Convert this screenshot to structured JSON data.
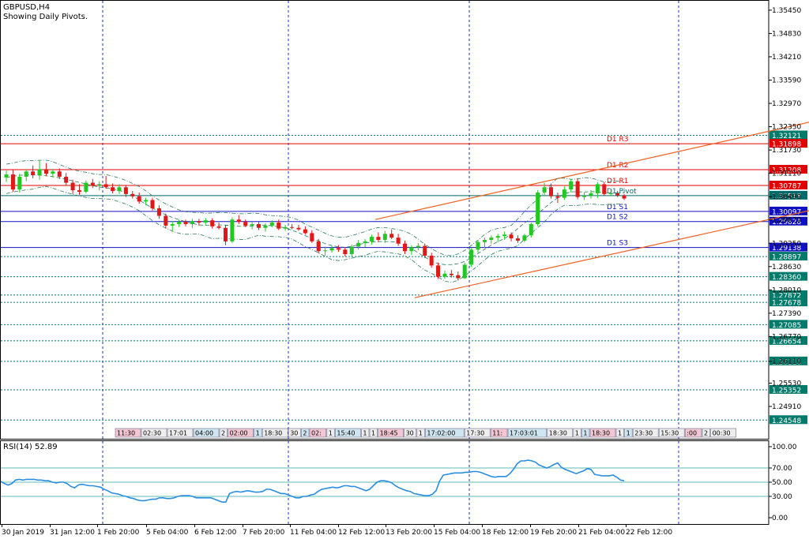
{
  "chart_data": {
    "type": "candlestick",
    "symbol": "GBPUSD,H4",
    "subtitle": "Showing Daily Pivots.",
    "price_axis": {
      "min": 1.2405,
      "max": 1.3572,
      "ticks": [
        "1.35450",
        "1.34830",
        "1.34210",
        "1.33590",
        "1.32970",
        "1.32350",
        "1.31730",
        "1.31110",
        "1.30490",
        "1.29870",
        "1.29250",
        "1.28630",
        "1.28010",
        "1.27390",
        "1.26770",
        "1.26110",
        "1.25530",
        "1.24910"
      ]
    },
    "x_labels": [
      "30 Jan 2019",
      "31 Jan 12:00",
      "1 Feb 20:00",
      "5 Feb 04:00",
      "6 Feb 12:00",
      "7 Feb 20:00",
      "11 Feb 04:00",
      "12 Feb 12:00",
      "13 Feb 20:00",
      "15 Feb 04:00",
      "18 Feb 12:00",
      "19 Feb 20:00",
      "21 Feb 04:00",
      "22 Feb 12:00"
    ],
    "pivot_lines": [
      {
        "label": "D1 R3",
        "value": 1.31898,
        "badge": "1.31898",
        "color": "#e00000"
      },
      {
        "label": "D1 R2",
        "value": 1.31208,
        "badge": "1.31208",
        "color": "#e00000"
      },
      {
        "label": "D1 R1",
        "value": 1.30787,
        "badge": "1.30787",
        "color": "#e00000"
      },
      {
        "label": "D1 Pivot",
        "value": 1.30518,
        "badge": "1.30518",
        "color": "#006a6a"
      },
      {
        "label": "D1 S1",
        "value": 1.30097,
        "badge": "1.30097",
        "color": "#1010c0"
      },
      {
        "label": "D1 S2",
        "value": 1.29828,
        "badge": "1.29828",
        "color": "#1010c0"
      },
      {
        "label": "D1 S3",
        "value": 1.29138,
        "badge": "1.29138",
        "color": "#1010c0"
      }
    ],
    "level_lines": [
      {
        "value": 1.32121,
        "badge": "1.32121",
        "color": "#007a6a"
      },
      {
        "value": 1.28897,
        "badge": "1.28897",
        "color": "#007a6a"
      },
      {
        "value": 1.2836,
        "badge": "1.28360",
        "color": "#007a6a"
      },
      {
        "value": 1.27872,
        "badge": "1.27872",
        "color": "#007a6a"
      },
      {
        "value": 1.27678,
        "badge": "1.27678",
        "color": "#007a6a"
      },
      {
        "value": 1.27085,
        "badge": "1.27085",
        "color": "#007a6a"
      },
      {
        "value": 1.26654,
        "badge": "1.26654",
        "color": "#007a6a"
      },
      {
        "value": 1.2611,
        "badge": "1.26110",
        "color": "#007a6a"
      },
      {
        "value": 1.25352,
        "badge": "1.25352",
        "color": "#007a6a"
      },
      {
        "value": 1.24548,
        "badge": "1.24548",
        "color": "#007a6a"
      }
    ],
    "channel": {
      "color": "#f06020",
      "upper": [
        [
          475,
          1.29881
        ],
        [
          1024,
          1.32469
        ]
      ],
      "lower": [
        [
          525,
          1.27803
        ],
        [
          1024,
          1.30116
        ]
      ]
    },
    "candles": [
      [
        1.31,
        1.3118,
        1.3088,
        1.3108
      ],
      [
        1.3108,
        1.312,
        1.3062,
        1.3068
      ],
      [
        1.3068,
        1.311,
        1.306,
        1.3102
      ],
      [
        1.3102,
        1.3122,
        1.309,
        1.3116
      ],
      [
        1.3116,
        1.3132,
        1.3098,
        1.3106
      ],
      [
        1.3106,
        1.3146,
        1.3094,
        1.3122
      ],
      [
        1.3122,
        1.3138,
        1.3104,
        1.311
      ],
      [
        1.311,
        1.3122,
        1.31,
        1.3116
      ],
      [
        1.3116,
        1.3124,
        1.3096,
        1.3102
      ],
      [
        1.3102,
        1.3112,
        1.3078,
        1.3086
      ],
      [
        1.3086,
        1.3094,
        1.3056,
        1.3066
      ],
      [
        1.3066,
        1.3082,
        1.3054,
        1.3062
      ],
      [
        1.3062,
        1.3092,
        1.3058,
        1.3086
      ],
      [
        1.3086,
        1.3096,
        1.3072,
        1.3078
      ],
      [
        1.3078,
        1.309,
        1.3066,
        1.3082
      ],
      [
        1.3082,
        1.3104,
        1.307,
        1.3074
      ],
      [
        1.3074,
        1.3084,
        1.3058,
        1.3064
      ],
      [
        1.3064,
        1.3082,
        1.3056,
        1.3074
      ],
      [
        1.3074,
        1.308,
        1.3048,
        1.3056
      ],
      [
        1.3056,
        1.3064,
        1.3044,
        1.305
      ],
      [
        1.305,
        1.306,
        1.303,
        1.3036
      ],
      [
        1.3036,
        1.3046,
        1.3026,
        1.304
      ],
      [
        1.304,
        1.3046,
        1.3012,
        1.3018
      ],
      [
        1.3018,
        1.3026,
        1.299,
        1.2998
      ],
      [
        1.2998,
        1.3004,
        1.2964,
        1.2972
      ],
      [
        1.2972,
        1.2984,
        1.2956,
        1.2976
      ],
      [
        1.2976,
        1.2988,
        1.2968,
        1.2982
      ],
      [
        1.2982,
        1.2988,
        1.297,
        1.2976
      ],
      [
        1.2976,
        1.299,
        1.2966,
        1.2984
      ],
      [
        1.2984,
        1.299,
        1.2972,
        1.298
      ],
      [
        1.298,
        1.2992,
        1.2974,
        1.2986
      ],
      [
        1.2986,
        1.2992,
        1.2964,
        1.297
      ],
      [
        1.297,
        1.298,
        1.2962,
        1.2966
      ],
      [
        1.2966,
        1.2974,
        1.292,
        1.293
      ],
      [
        1.293,
        1.2994,
        1.2926,
        1.2988
      ],
      [
        1.2988,
        1.3,
        1.2976,
        1.2982
      ],
      [
        1.2982,
        1.2988,
        1.2968,
        1.2972
      ],
      [
        1.2972,
        1.2982,
        1.2962,
        1.2976
      ],
      [
        1.2976,
        1.2982,
        1.296,
        1.2966
      ],
      [
        1.2966,
        1.2978,
        1.2956,
        1.2972
      ],
      [
        1.2972,
        1.2986,
        1.2968,
        1.298
      ],
      [
        1.298,
        1.2988,
        1.296,
        1.2964
      ],
      [
        1.2964,
        1.2974,
        1.2958,
        1.2968
      ],
      [
        1.2968,
        1.2976,
        1.2962,
        1.2966
      ],
      [
        1.2966,
        1.2974,
        1.2958,
        1.2962
      ],
      [
        1.2962,
        1.297,
        1.2948,
        1.2952
      ],
      [
        1.2952,
        1.296,
        1.2926,
        1.293
      ],
      [
        1.293,
        1.2936,
        1.2898,
        1.2904
      ],
      [
        1.2904,
        1.2916,
        1.2892,
        1.2906
      ],
      [
        1.2906,
        1.2918,
        1.29,
        1.2912
      ],
      [
        1.2912,
        1.292,
        1.2902,
        1.2908
      ],
      [
        1.2908,
        1.2914,
        1.289,
        1.2896
      ],
      [
        1.2896,
        1.2922,
        1.2888,
        1.2916
      ],
      [
        1.2916,
        1.2934,
        1.2908,
        1.2926
      ],
      [
        1.2926,
        1.2936,
        1.2914,
        1.293
      ],
      [
        1.293,
        1.2948,
        1.2922,
        1.2942
      ],
      [
        1.2942,
        1.2954,
        1.2928,
        1.2934
      ],
      [
        1.2934,
        1.2958,
        1.2926,
        1.295
      ],
      [
        1.295,
        1.2962,
        1.2936,
        1.294
      ],
      [
        1.294,
        1.295,
        1.2918,
        1.2924
      ],
      [
        1.2924,
        1.2932,
        1.2896,
        1.2904
      ],
      [
        1.2904,
        1.292,
        1.2894,
        1.2914
      ],
      [
        1.2914,
        1.2926,
        1.2906,
        1.2918
      ],
      [
        1.2918,
        1.2924,
        1.2886,
        1.2892
      ],
      [
        1.2892,
        1.29,
        1.286,
        1.2866
      ],
      [
        1.2866,
        1.2874,
        1.283,
        1.2836
      ],
      [
        1.2836,
        1.2852,
        1.283,
        1.2844
      ],
      [
        1.2844,
        1.2854,
        1.2834,
        1.284
      ],
      [
        1.284,
        1.285,
        1.2826,
        1.2832
      ],
      [
        1.2832,
        1.2874,
        1.283,
        1.2868
      ],
      [
        1.2868,
        1.2912,
        1.2862,
        1.2908
      ],
      [
        1.2908,
        1.2934,
        1.29,
        1.2928
      ],
      [
        1.2928,
        1.294,
        1.2912,
        1.2934
      ],
      [
        1.2934,
        1.2946,
        1.2924,
        1.294
      ],
      [
        1.294,
        1.295,
        1.2928,
        1.2944
      ],
      [
        1.2944,
        1.2956,
        1.2934,
        1.2948
      ],
      [
        1.2948,
        1.2954,
        1.293,
        1.2938
      ],
      [
        1.2938,
        1.2946,
        1.2926,
        1.2932
      ],
      [
        1.2932,
        1.295,
        1.2928,
        1.2946
      ],
      [
        1.2946,
        1.298,
        1.294,
        1.2976
      ],
      [
        1.2976,
        1.3066,
        1.297,
        1.306
      ],
      [
        1.306,
        1.3086,
        1.305,
        1.3074
      ],
      [
        1.3074,
        1.3084,
        1.3044,
        1.305
      ],
      [
        1.305,
        1.306,
        1.3032,
        1.3046
      ],
      [
        1.3046,
        1.3076,
        1.304,
        1.3068
      ],
      [
        1.3068,
        1.3096,
        1.306,
        1.309
      ],
      [
        1.309,
        1.3098,
        1.3042,
        1.3048
      ],
      [
        1.3048,
        1.306,
        1.304,
        1.3052
      ],
      [
        1.3052,
        1.3066,
        1.3044,
        1.3058
      ],
      [
        1.3058,
        1.3088,
        1.3046,
        1.3082
      ],
      [
        1.3082,
        1.3088,
        1.3052,
        1.3056
      ],
      [
        1.3056,
        1.3066,
        1.305,
        1.3058
      ],
      [
        1.3058,
        1.3064,
        1.3048,
        1.3052
      ],
      [
        1.3052,
        1.3056,
        1.304,
        1.3044
      ]
    ],
    "rsi": {
      "label": "RSI(14) 52.89",
      "min": 0,
      "max": 100,
      "ticks": [
        "100.00",
        "70.00",
        "50.00",
        "30.00",
        "0.00"
      ],
      "levels": [
        70,
        50,
        30
      ],
      "values": [
        51,
        48,
        46,
        48,
        53,
        54,
        53,
        54,
        54,
        54,
        53,
        53,
        52,
        52,
        50,
        49,
        50,
        50,
        48,
        44,
        42,
        46,
        47,
        46,
        45,
        45,
        44,
        43,
        40,
        38,
        35,
        34,
        33,
        31,
        30,
        28,
        27,
        25,
        24,
        24,
        25,
        26,
        26,
        28,
        28,
        27,
        27,
        28,
        30,
        31,
        31,
        31,
        30,
        28,
        28,
        28,
        28,
        28,
        26,
        24,
        22,
        22,
        34,
        36,
        37,
        36,
        37,
        38,
        37,
        36,
        36,
        37,
        40,
        40,
        38,
        36,
        34,
        34,
        32,
        30,
        28,
        28,
        30,
        30,
        32,
        33,
        37,
        40,
        41,
        42,
        43,
        42,
        43,
        45,
        45,
        44,
        44,
        42,
        40,
        38,
        40,
        45,
        50,
        52,
        52,
        51,
        49,
        45,
        42,
        40,
        38,
        37,
        34,
        33,
        32,
        31,
        31,
        33,
        38,
        52,
        60,
        61,
        62,
        63,
        63,
        63,
        64,
        64,
        65,
        65,
        64,
        62,
        60,
        58,
        57,
        58,
        58,
        58,
        62,
        68,
        76,
        80,
        80,
        81,
        80,
        78,
        74,
        72,
        70,
        72,
        75,
        77,
        71,
        68,
        66,
        64,
        62,
        64,
        66,
        69,
        68,
        61,
        60,
        59,
        59,
        59,
        60,
        57,
        53,
        52
      ]
    },
    "event_labels": [
      "11:30",
      "02:30",
      "17:01",
      "04:00",
      "2",
      "02:00",
      "1",
      "18:30",
      "30",
      "2",
      "02:",
      "1",
      "15:40",
      "1",
      "1",
      "18:45",
      "30",
      "1",
      "17:02:00",
      "17:30",
      "11:",
      "17:03:01",
      "18:30",
      "1",
      "1",
      "18:30",
      "1",
      "1",
      "23:30",
      "15:30",
      ":00",
      "2",
      "00:30"
    ]
  }
}
